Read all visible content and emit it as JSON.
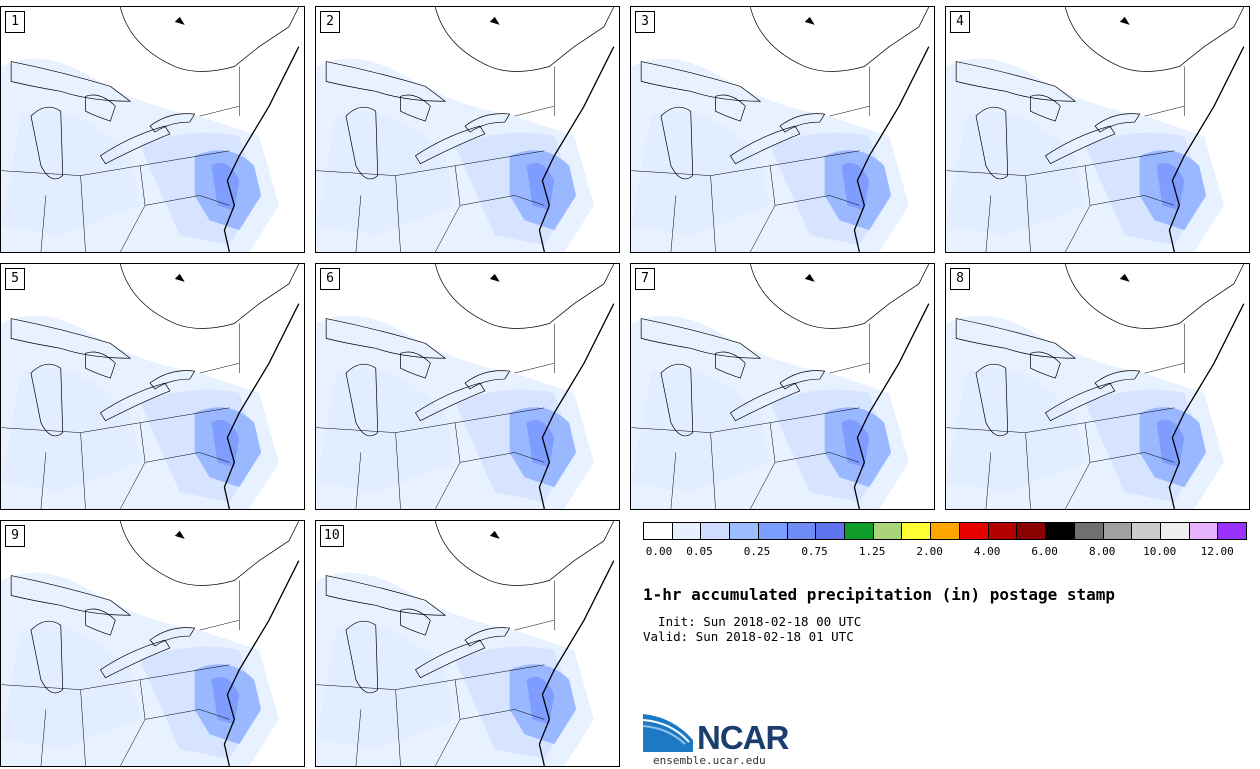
{
  "members": [
    "1",
    "2",
    "3",
    "4",
    "5",
    "6",
    "7",
    "8",
    "9",
    "10"
  ],
  "colorbar": {
    "colors": [
      "#ffffff",
      "#e6f0ff",
      "#cddcff",
      "#9bbcff",
      "#7b9dff",
      "#6f8cf5",
      "#5f73ee",
      "#0f9c2a",
      "#a9d47a",
      "#ffff33",
      "#ffa500",
      "#e60000",
      "#b50000",
      "#8b0000",
      "#000000",
      "#707070",
      "#a0a0a0",
      "#cccccc",
      "#eeeeee",
      "#e5b3ff",
      "#9932ff"
    ],
    "ticks": [
      "0.00",
      "0.05",
      "0.25",
      "0.75",
      "1.25",
      "2.00",
      "4.00",
      "6.00",
      "8.00",
      "10.00",
      "12.00"
    ]
  },
  "title": "1-hr accumulated precipitation (in) postage stamp",
  "init": "  Init: Sun 2018-02-18 00 UTC",
  "valid": "Valid: Sun 2018-02-18 01 UTC",
  "logo": {
    "text": "NCAR",
    "url": "ensemble.ucar.edu"
  }
}
